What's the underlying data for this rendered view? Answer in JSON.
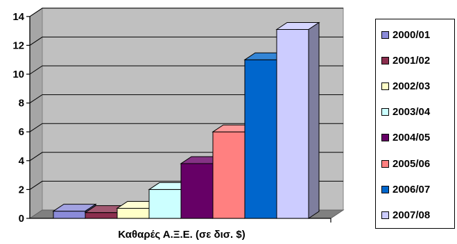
{
  "chart_data": {
    "type": "bar",
    "style": "3d-column",
    "xlabel": "Καθαρές Α.Ξ.Ε. (σε δισ. $)",
    "ylabel": "",
    "ylim": [
      0,
      14
    ],
    "y_ticks": [
      "0",
      "2",
      "4",
      "6",
      "8",
      "10",
      "12",
      "14"
    ],
    "grid": true,
    "legend_position": "right",
    "series": [
      {
        "name": "2000/01",
        "value": 0.5,
        "color": "#8b8bd9"
      },
      {
        "name": "2001/02",
        "value": 0.4,
        "color": "#8b2e4e"
      },
      {
        "name": "2002/03",
        "value": 0.7,
        "color": "#ffffc8"
      },
      {
        "name": "2003/04",
        "value": 2.0,
        "color": "#ccffff"
      },
      {
        "name": "2004/05",
        "value": 3.8,
        "color": "#660066"
      },
      {
        "name": "2005/06",
        "value": 6.0,
        "color": "#ff8080"
      },
      {
        "name": "2006/07",
        "value": 11.0,
        "color": "#0066cc"
      },
      {
        "name": "2007/08",
        "value": 13.1,
        "color": "#ccccff"
      }
    ],
    "colors": {
      "plot_background": "#c0c0c0",
      "floor": "#808080",
      "gridline": "#000000"
    }
  }
}
